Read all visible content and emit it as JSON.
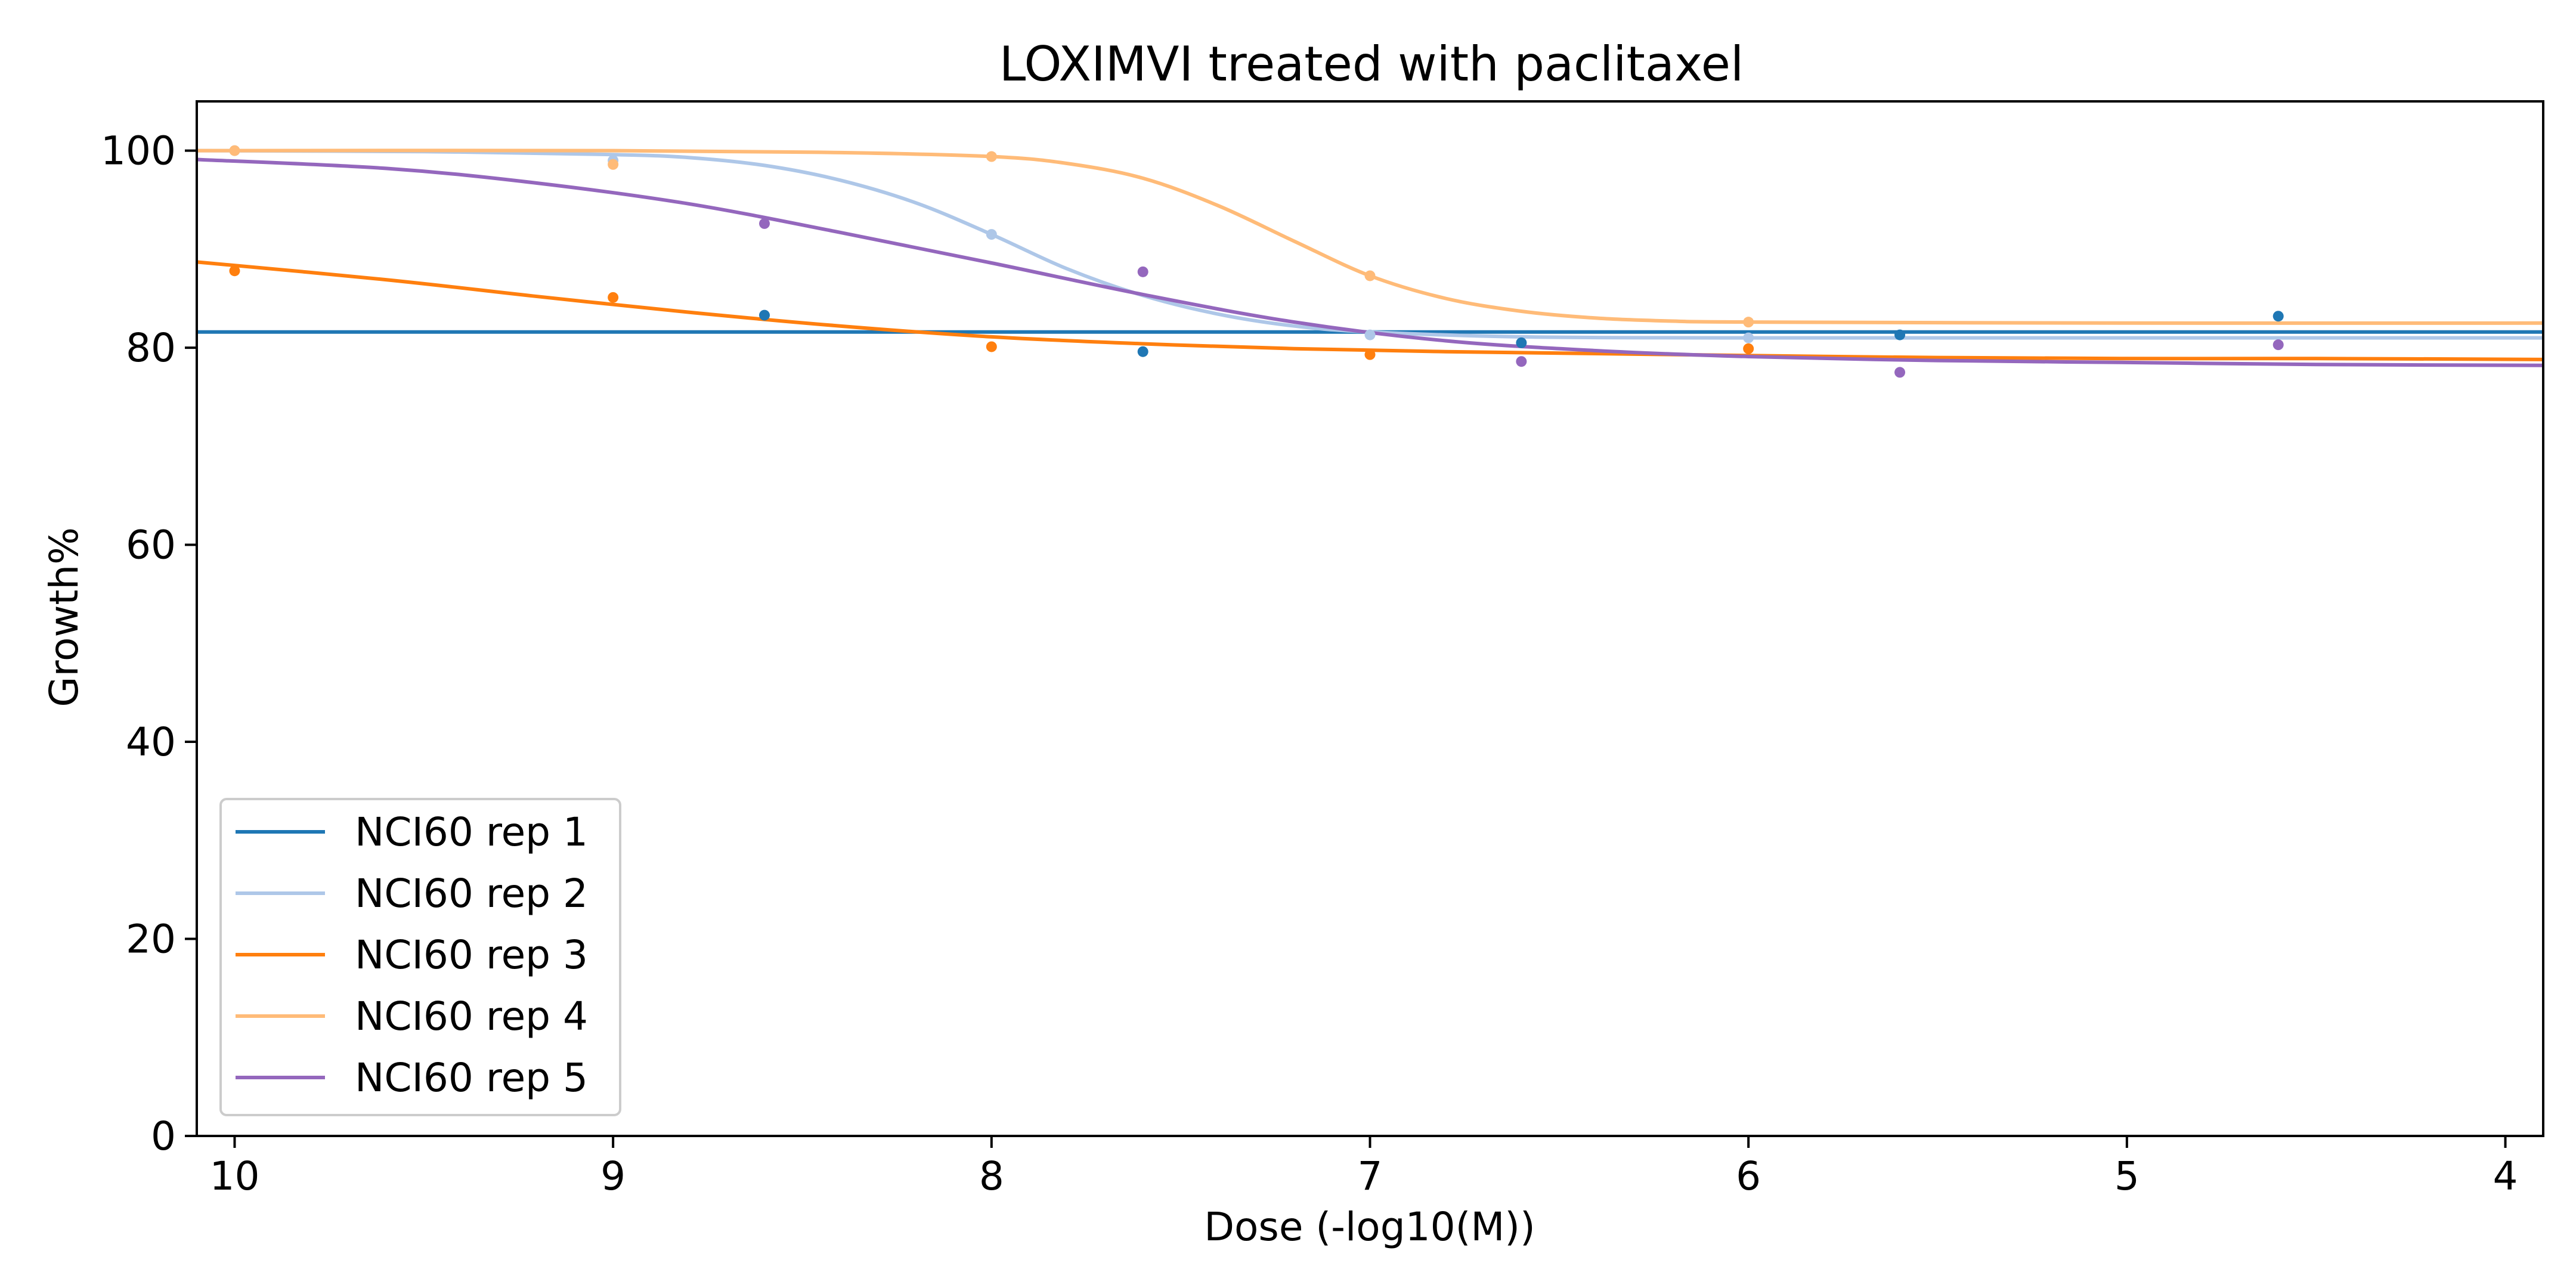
{
  "chart_data": {
    "type": "line",
    "title": "LOXIMVI treated with paclitaxel",
    "xlabel": "Dose (-log10(M))",
    "ylabel": "Growth%",
    "xlim": [
      10.1,
      3.9
    ],
    "ylim": [
      0,
      105
    ],
    "x_ticks": [
      10,
      9,
      8,
      7,
      6,
      5,
      4
    ],
    "y_ticks": [
      0,
      20,
      40,
      60,
      80,
      100
    ],
    "grid": false,
    "legend_position": "lower-left",
    "series": [
      {
        "name": "NCI60 rep 1",
        "color": "#1f77b4",
        "points": {
          "x": [
            8.6,
            7.6,
            6.6,
            5.6,
            4.6
          ],
          "y": [
            83.3,
            79.6,
            80.5,
            81.3,
            83.2
          ]
        },
        "curve": {
          "x": [
            10.1,
            9.0,
            8.0,
            7.0,
            6.0,
            5.0,
            3.9
          ],
          "y": [
            81.6,
            81.6,
            81.6,
            81.6,
            81.6,
            81.6,
            81.6
          ]
        }
      },
      {
        "name": "NCI60 rep 2",
        "color": "#aec7e8",
        "points": {
          "x": [
            10,
            9,
            8,
            7,
            6
          ],
          "y": [
            100.0,
            99.0,
            91.5,
            81.3,
            81.0
          ]
        },
        "curve": {
          "x": [
            10.1,
            9.5,
            9.0,
            8.8,
            8.6,
            8.4,
            8.2,
            8.0,
            7.8,
            7.6,
            7.4,
            7.2,
            7.0,
            6.6,
            6.0,
            5.0,
            3.9
          ],
          "y": [
            100.0,
            99.9,
            99.6,
            99.3,
            98.5,
            97.0,
            94.7,
            91.5,
            88.0,
            85.3,
            83.4,
            82.2,
            81.6,
            81.1,
            81.0,
            81.0,
            81.0
          ]
        }
      },
      {
        "name": "NCI60 rep 3",
        "color": "#ff7f0e",
        "points": {
          "x": [
            10,
            9,
            8,
            7,
            6
          ],
          "y": [
            87.8,
            85.1,
            80.1,
            79.3,
            79.9
          ]
        },
        "curve": {
          "x": [
            10.1,
            9.6,
            9.2,
            8.8,
            8.4,
            8.0,
            7.6,
            7.2,
            6.8,
            6.4,
            6.0,
            5.5,
            5.0,
            4.5,
            3.9
          ],
          "y": [
            88.7,
            86.9,
            85.2,
            83.6,
            82.2,
            81.1,
            80.4,
            79.9,
            79.6,
            79.4,
            79.2,
            79.0,
            78.9,
            78.9,
            78.8
          ]
        }
      },
      {
        "name": "NCI60 rep 4",
        "color": "#ffbb78",
        "points": {
          "x": [
            10,
            9,
            8,
            7,
            6
          ],
          "y": [
            100.0,
            98.6,
            99.4,
            87.3,
            82.6
          ]
        },
        "curve": {
          "x": [
            10.1,
            9.0,
            8.4,
            8.0,
            7.8,
            7.6,
            7.4,
            7.2,
            7.0,
            6.8,
            6.6,
            6.4,
            6.2,
            6.0,
            5.0,
            3.9
          ],
          "y": [
            100.0,
            100.0,
            99.8,
            99.4,
            98.7,
            97.2,
            94.4,
            90.8,
            87.3,
            85.0,
            83.7,
            83.0,
            82.7,
            82.6,
            82.5,
            82.5
          ]
        }
      },
      {
        "name": "NCI60 rep 5",
        "color": "#9467bd",
        "points": {
          "x": [
            8.6,
            7.6,
            6.6,
            5.6,
            4.6
          ],
          "y": [
            92.6,
            87.7,
            78.6,
            77.5,
            80.3
          ]
        },
        "curve": {
          "x": [
            10.1,
            9.6,
            9.2,
            8.8,
            8.4,
            8.0,
            7.6,
            7.2,
            6.8,
            6.4,
            6.0,
            5.5,
            5.0,
            4.5,
            3.9
          ],
          "y": [
            99.1,
            98.2,
            96.7,
            94.6,
            91.7,
            88.6,
            85.4,
            82.6,
            80.7,
            79.7,
            79.1,
            78.7,
            78.5,
            78.3,
            78.2
          ]
        }
      }
    ]
  }
}
